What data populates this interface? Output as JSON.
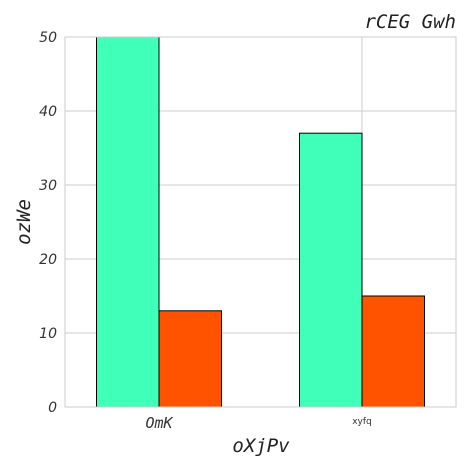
{
  "chart_data": {
    "type": "bar",
    "title": "rCEG Gwh",
    "xlabel": "oXjPv",
    "ylabel": "ozWe",
    "categories": [
      "OmK",
      "xyfq"
    ],
    "series": [
      {
        "values": [
          50,
          37
        ],
        "color": "#40ffb9"
      },
      {
        "values": [
          13,
          15
        ],
        "color": "#ff5300"
      }
    ],
    "ylim": [
      0,
      50
    ],
    "yticks": [
      0,
      10,
      20,
      30,
      40,
      50
    ],
    "grid": true,
    "legend": "none"
  }
}
